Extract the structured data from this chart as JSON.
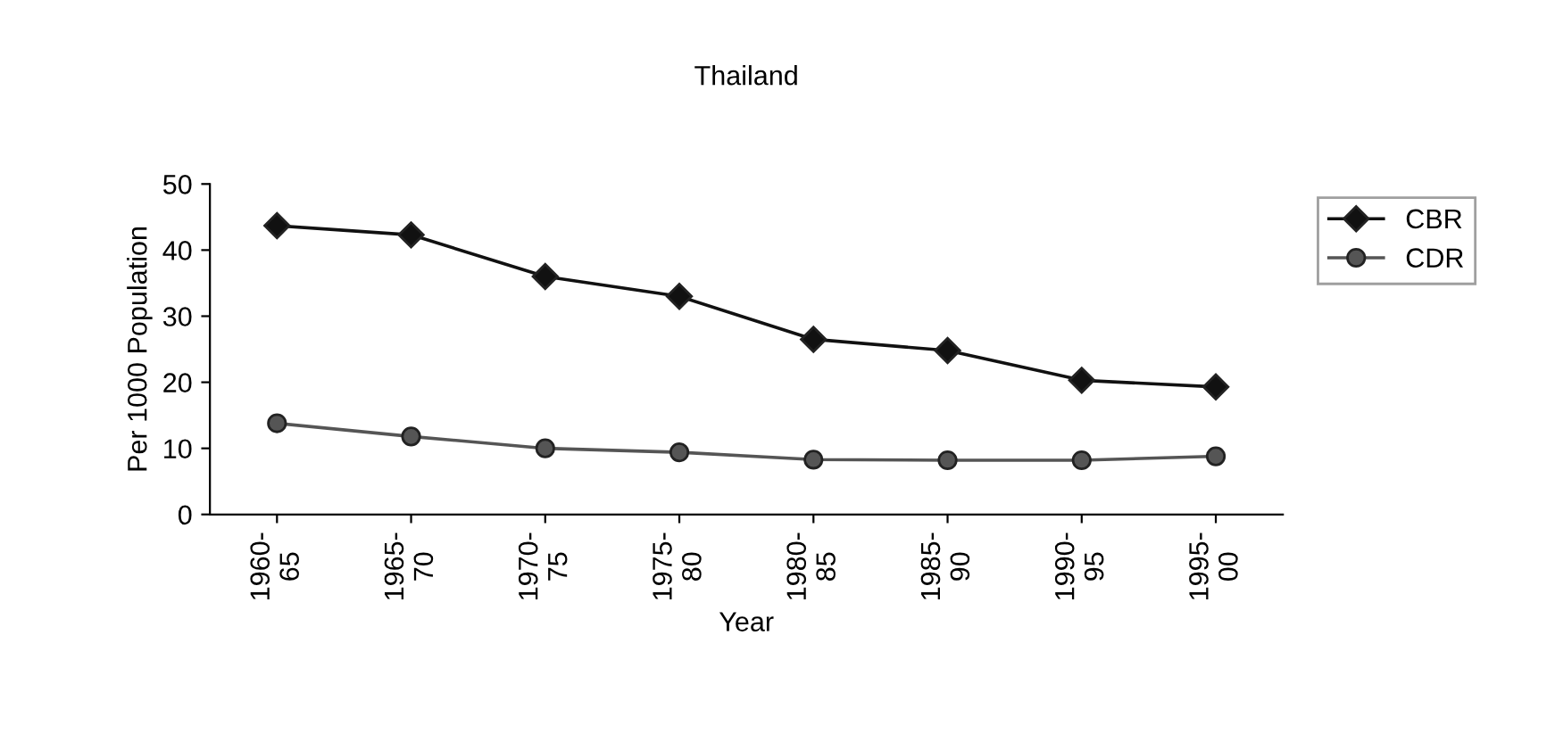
{
  "chart_data": {
    "type": "line",
    "title": "Thailand",
    "xlabel": "Year",
    "ylabel": "Per 1000 Population",
    "categories": [
      "1960-\n65",
      "1965-\n70",
      "1970-\n75",
      "1975-\n80",
      "1980-\n85",
      "1985-\n90",
      "1990-\n95",
      "1995-\n00"
    ],
    "series": [
      {
        "name": "CBR",
        "color": "#111111",
        "marker": "diamond",
        "values": [
          43.7,
          42.3,
          36,
          33,
          26.5,
          24.8,
          20.3,
          19.3
        ]
      },
      {
        "name": "CDR",
        "color": "#555555",
        "marker": "circle",
        "values": [
          13.8,
          11.8,
          10,
          9.4,
          8.3,
          8.2,
          8.2,
          8.8
        ]
      }
    ],
    "ylim": [
      0,
      50
    ],
    "yticks": [
      0,
      10,
      20,
      30,
      40,
      50
    ],
    "grid": false,
    "legend": "right",
    "line_style": "solid"
  }
}
